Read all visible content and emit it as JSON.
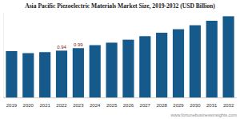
{
  "chart_data": {
    "type": "bar",
    "title": "Asia Pacific Piezoelectric Materials Market Size, 2019-2032 (USD Billion)",
    "categories": [
      "2019",
      "2020",
      "2021",
      "2022",
      "2023",
      "2024",
      "2025",
      "2026",
      "2027",
      "2028",
      "2029",
      "2030",
      "2031",
      "2032"
    ],
    "values": [
      0.93,
      0.89,
      0.91,
      0.94,
      0.99,
      1.05,
      1.1,
      1.16,
      1.23,
      1.3,
      1.37,
      1.45,
      1.54,
      1.63
    ],
    "value_labels": [
      null,
      null,
      null,
      "0.94",
      "0.99",
      null,
      null,
      null,
      null,
      null,
      null,
      null,
      null,
      null
    ],
    "data_labels": true,
    "color": "#165a8c",
    "ylim": [
      0,
      1.7
    ],
    "tick_labels": "x",
    "grid": false,
    "source": "www.fortunebusinessinsights.com"
  }
}
